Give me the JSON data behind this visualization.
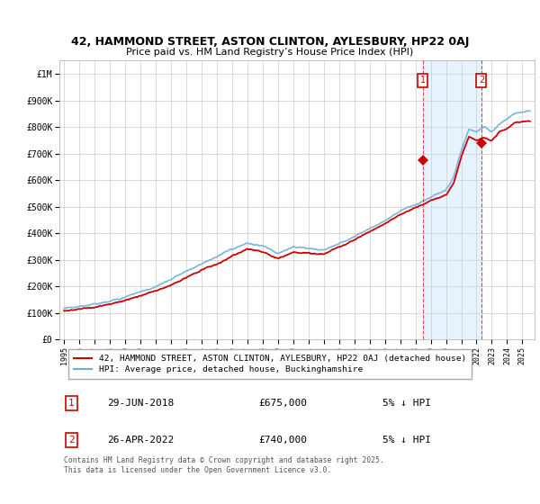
{
  "title": "42, HAMMOND STREET, ASTON CLINTON, AYLESBURY, HP22 0AJ",
  "subtitle": "Price paid vs. HM Land Registry’s House Price Index (HPI)",
  "ylim": [
    0,
    1050000
  ],
  "yticks": [
    0,
    100000,
    200000,
    300000,
    400000,
    500000,
    600000,
    700000,
    800000,
    900000,
    1000000
  ],
  "ytick_labels": [
    "£0",
    "£100K",
    "£200K",
    "£300K",
    "£400K",
    "£500K",
    "£600K",
    "£700K",
    "£800K",
    "£900K",
    "£1M"
  ],
  "sale1_x": 2018.49,
  "sale1_y": 675000,
  "sale2_x": 2022.32,
  "sale2_y": 740000,
  "line_color_hpi": "#6baed6",
  "line_color_price": "#cc0000",
  "fill_color": "#ddeeff",
  "background_color": "#ffffff",
  "grid_color": "#cccccc",
  "legend_label_price": "42, HAMMOND STREET, ASTON CLINTON, AYLESBURY, HP22 0AJ (detached house)",
  "legend_label_hpi": "HPI: Average price, detached house, Buckinghamshire",
  "annotation1": [
    "1",
    "29-JUN-2018",
    "£675,000",
    "5% ↓ HPI"
  ],
  "annotation2": [
    "2",
    "26-APR-2022",
    "£740,000",
    "5% ↓ HPI"
  ],
  "footer": "Contains HM Land Registry data © Crown copyright and database right 2025.\nThis data is licensed under the Open Government Licence v3.0.",
  "xmin": 1994.7,
  "xmax": 2025.8
}
